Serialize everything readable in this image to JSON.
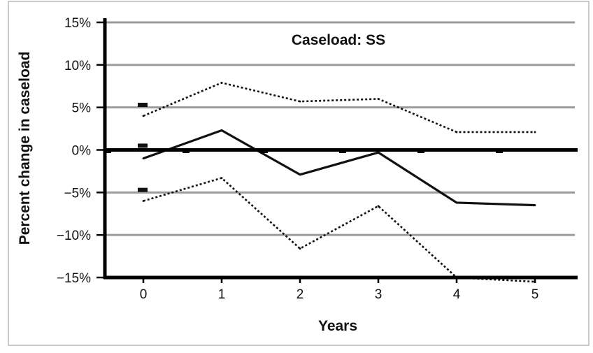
{
  "chart_data": {
    "type": "line",
    "title": "Caseload: SS",
    "xlabel": "Years",
    "ylabel": "Percent change in caseload",
    "x": [
      0,
      1,
      2,
      3,
      4,
      5
    ],
    "x_tick_labels": [
      "0",
      "1",
      "2",
      "3",
      "4",
      "5"
    ],
    "ylim": [
      -15,
      15
    ],
    "y_ticks": [
      15,
      10,
      5,
      0,
      -5,
      -10,
      -15
    ],
    "y_tick_labels": [
      "15%",
      "10%",
      "5%",
      "0%",
      "−5%",
      "−10%",
      "−15%"
    ],
    "grid": true,
    "legend": "none",
    "series": [
      {
        "style": "solid",
        "values": [
          -1.0,
          2.3,
          -2.9,
          -0.3,
          -6.2,
          -6.5
        ]
      },
      {
        "style": "dotted",
        "values": [
          4.0,
          7.9,
          5.7,
          6.0,
          2.1,
          2.1
        ]
      },
      {
        "style": "dotted",
        "values": [
          -6.0,
          -3.3,
          -11.6,
          -6.6,
          -15.0,
          -15.5
        ]
      }
    ],
    "markers": [
      {
        "x": 0,
        "y": 5.3
      },
      {
        "x": 0,
        "y": 0.5
      },
      {
        "x": 0,
        "y": -4.7
      }
    ],
    "colors": {
      "series": "#111111",
      "grid": "#9b9b9b",
      "zero_line": "#000000",
      "frame": "#b8b8b8"
    }
  }
}
